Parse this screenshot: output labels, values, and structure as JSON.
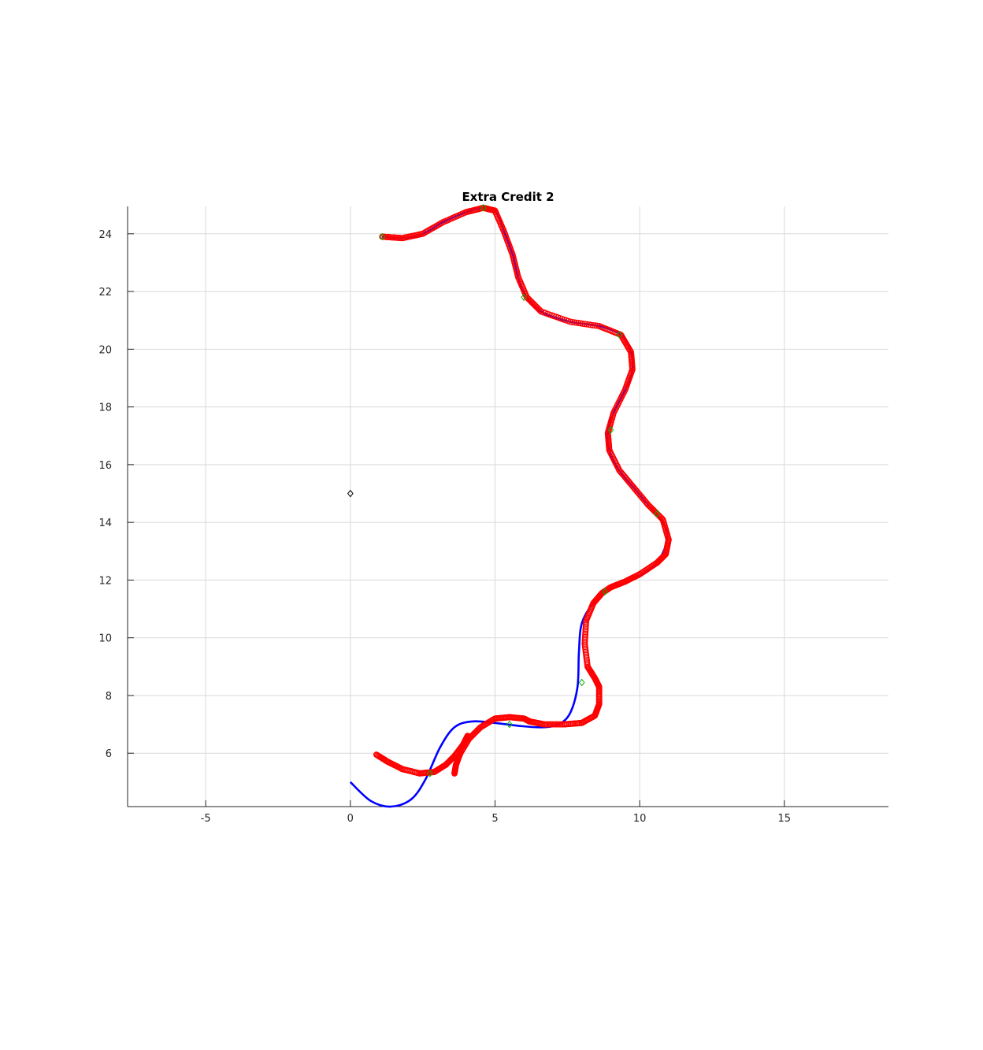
{
  "chart_data": {
    "type": "line",
    "title": "Extra Credit 2",
    "xlabel": "",
    "ylabel": "",
    "xlim": [
      -7.7,
      18.6
    ],
    "ylim": [
      4.15,
      24.95
    ],
    "xticks": [
      -5,
      0,
      5,
      10,
      15
    ],
    "yticks": [
      6,
      8,
      10,
      12,
      14,
      16,
      18,
      20,
      22,
      24
    ],
    "grid": true,
    "legend": "none",
    "colors": {
      "reference_path": "#0000ff",
      "estimated_poses": "#ff0000",
      "waypoints": "#00b000",
      "start_marker": "#000000"
    },
    "series": [
      {
        "style": "line",
        "color": "#0000ff",
        "x": [
          0.0,
          0.7,
          1.4,
          2.1,
          2.6,
          3.1,
          3.6,
          4.2,
          5.0,
          5.8,
          6.6,
          7.2,
          7.6,
          7.85,
          7.9,
          8.0,
          8.4,
          9.0,
          9.5,
          10.0,
          10.6,
          10.95,
          10.8,
          10.3,
          9.8,
          9.3,
          8.95,
          8.9,
          9.1,
          9.5,
          9.75,
          9.7,
          9.35,
          8.6,
          7.6,
          6.6,
          6.1,
          5.8,
          5.6,
          5.3,
          5.0,
          4.6,
          4.0,
          3.2,
          2.5,
          1.8,
          1.1
        ],
        "y": [
          5.0,
          4.35,
          4.15,
          4.4,
          5.1,
          6.2,
          6.9,
          7.1,
          7.05,
          6.95,
          6.9,
          7.0,
          7.4,
          8.3,
          9.5,
          10.5,
          11.2,
          11.7,
          11.9,
          12.15,
          12.6,
          13.4,
          14.0,
          14.6,
          15.2,
          15.8,
          16.5,
          17.1,
          17.8,
          18.6,
          19.3,
          19.9,
          20.5,
          20.8,
          20.95,
          21.3,
          21.8,
          22.5,
          23.3,
          24.1,
          24.8,
          24.9,
          24.75,
          24.4,
          24.0,
          23.85,
          23.9
        ]
      },
      {
        "style": "markers",
        "marker": "circle",
        "color": "#ff0000",
        "x": [
          1.1,
          1.8,
          2.5,
          3.2,
          4.0,
          4.6,
          5.0,
          5.3,
          5.6,
          5.8,
          6.1,
          6.6,
          7.6,
          8.6,
          9.35,
          9.7,
          9.75,
          9.5,
          9.1,
          8.9,
          8.95,
          9.3,
          9.8,
          10.3,
          10.8,
          11.0,
          10.9,
          10.6,
          10.0,
          9.5,
          9.0,
          8.7,
          8.4,
          8.15,
          8.1,
          8.2,
          8.45,
          8.6,
          8.6,
          8.45,
          8.0,
          7.4,
          6.7,
          6.2,
          6.0,
          5.5,
          5.0,
          4.5,
          4.1,
          3.8,
          3.65,
          3.6
        ],
        "y": [
          23.9,
          23.85,
          24.0,
          24.4,
          24.75,
          24.9,
          24.8,
          24.1,
          23.3,
          22.5,
          21.8,
          21.3,
          20.95,
          20.8,
          20.5,
          19.9,
          19.3,
          18.6,
          17.8,
          17.1,
          16.5,
          15.8,
          15.2,
          14.6,
          14.1,
          13.4,
          12.9,
          12.6,
          12.2,
          11.95,
          11.75,
          11.55,
          11.2,
          10.6,
          9.8,
          9.0,
          8.6,
          8.3,
          7.7,
          7.3,
          7.05,
          7.0,
          7.0,
          7.1,
          7.2,
          7.25,
          7.2,
          6.9,
          6.5,
          6.0,
          5.6,
          5.3
        ]
      },
      {
        "style": "markers",
        "marker": "circle",
        "color": "#ff0000",
        "x": [
          0.9,
          1.3,
          1.8,
          2.4,
          2.9,
          3.3,
          3.6,
          3.9,
          4.05
        ],
        "y": [
          5.95,
          5.7,
          5.45,
          5.3,
          5.35,
          5.6,
          5.9,
          6.3,
          6.6
        ]
      },
      {
        "style": "markers",
        "marker": "diamond",
        "color": "#00b000",
        "x": [
          1.1,
          4.6,
          6.0,
          9.3,
          9.0,
          10.6,
          8.8,
          8.0,
          5.5,
          2.75
        ],
        "y": [
          23.9,
          24.9,
          21.8,
          20.5,
          17.2,
          14.3,
          11.6,
          8.45,
          7.0,
          5.3
        ]
      },
      {
        "style": "markers",
        "marker": "diamond",
        "color": "#000000",
        "x": [
          0.0
        ],
        "y": [
          15.0
        ]
      }
    ]
  }
}
